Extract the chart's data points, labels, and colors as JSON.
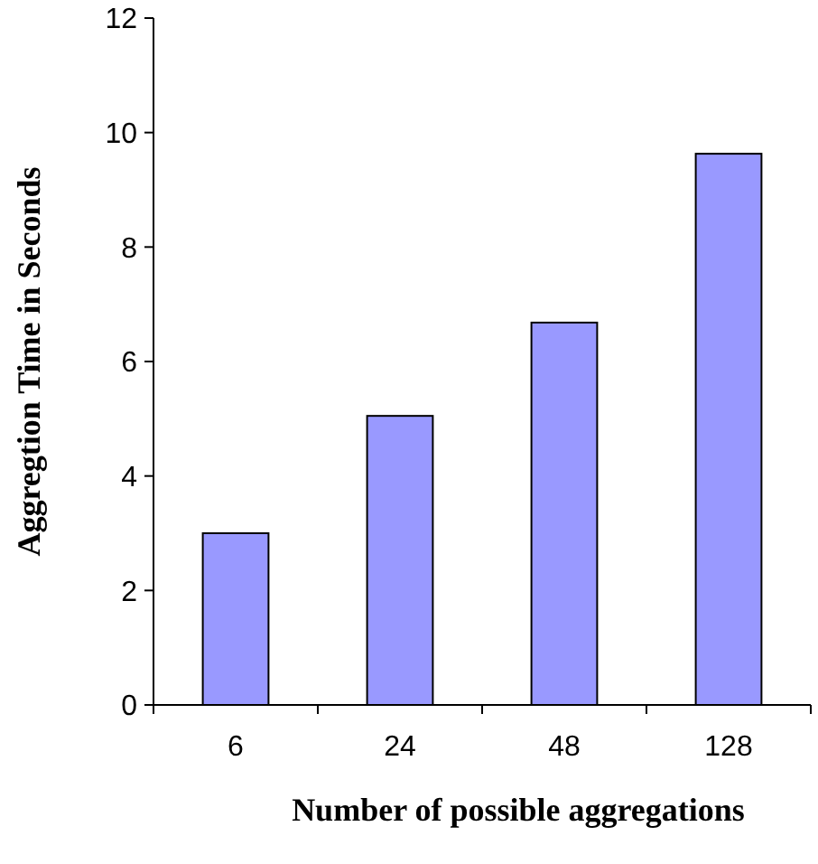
{
  "chart_data": {
    "type": "bar",
    "xlabel": "Number of possible aggregations",
    "ylabel": "Aggregtion Time in Seconds",
    "categories": [
      "6",
      "24",
      "48",
      "128"
    ],
    "values": [
      3.0,
      5.05,
      6.68,
      9.63
    ],
    "color": "#9999ff",
    "ylim": [
      0,
      12
    ],
    "yticks": [
      0,
      2,
      4,
      6,
      8,
      10,
      12
    ],
    "grid": false
  }
}
